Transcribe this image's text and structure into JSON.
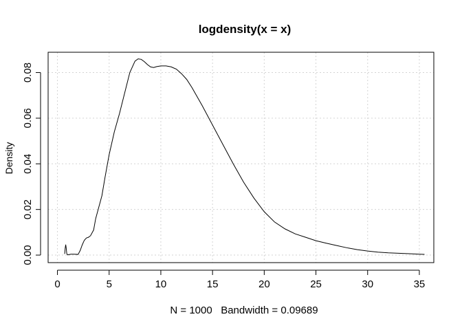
{
  "chart_data": {
    "type": "line",
    "title": "logdensity(x = x)",
    "xlabel": "N = 1000   Bandwidth = 0.09689",
    "ylabel": "Density",
    "xlim": [
      -0.9,
      36.4
    ],
    "ylim": [
      -0.0033,
      0.0889
    ],
    "x_ticks": [
      0,
      5,
      10,
      15,
      20,
      25,
      30,
      35
    ],
    "y_ticks": [
      0.0,
      0.02,
      0.04,
      0.06,
      0.08
    ],
    "x_tick_labels": [
      "0",
      "5",
      "10",
      "15",
      "20",
      "25",
      "30",
      "35"
    ],
    "y_tick_labels": [
      "0.00",
      "0.02",
      "0.04",
      "0.06",
      "0.08"
    ],
    "grid": true,
    "series": [
      {
        "color": "#000000",
        "x": [
          0.7,
          0.75,
          0.8,
          0.85,
          0.9,
          0.95,
          1.0,
          1.1,
          1.3,
          1.6,
          2.0,
          2.2,
          2.4,
          2.6,
          2.8,
          3.0,
          3.2,
          3.5,
          3.7,
          4.0,
          4.3,
          4.6,
          5.0,
          5.5,
          6.0,
          6.5,
          7.0,
          7.5,
          7.8,
          8.1,
          8.4,
          8.7,
          9.0,
          9.3,
          9.6,
          10.0,
          10.5,
          11.0,
          11.5,
          12.0,
          12.5,
          13.0,
          14.0,
          15.0,
          16.0,
          17.0,
          18.0,
          19.0,
          20.0,
          21.0,
          22.0,
          23.0,
          24.0,
          25.0,
          26.0,
          27.0,
          28.0,
          29.0,
          30.0,
          31.0,
          32.0,
          33.0,
          34.0,
          35.0,
          35.5
        ],
        "values": [
          0.0005,
          0.003,
          0.0046,
          0.003,
          0.0008,
          0.0002,
          0.0001,
          0.0002,
          0.0004,
          0.0004,
          0.0003,
          0.002,
          0.0045,
          0.0065,
          0.0075,
          0.0078,
          0.0085,
          0.011,
          0.016,
          0.021,
          0.026,
          0.034,
          0.044,
          0.054,
          0.062,
          0.071,
          0.08,
          0.085,
          0.086,
          0.0858,
          0.0848,
          0.0835,
          0.0825,
          0.0822,
          0.0826,
          0.0829,
          0.0829,
          0.0825,
          0.0815,
          0.0795,
          0.077,
          0.0735,
          0.0655,
          0.057,
          0.0485,
          0.04,
          0.032,
          0.025,
          0.019,
          0.0145,
          0.0115,
          0.0093,
          0.0078,
          0.0063,
          0.0052,
          0.0042,
          0.0032,
          0.0024,
          0.0018,
          0.0013,
          0.001,
          0.0008,
          0.0006,
          0.0004,
          0.0003
        ]
      }
    ]
  }
}
